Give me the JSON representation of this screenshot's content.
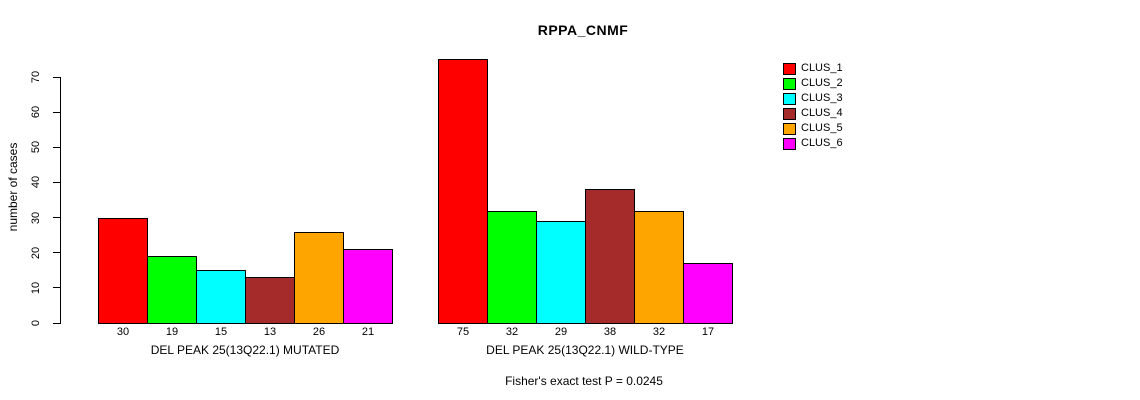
{
  "title": "RPPA_CNMF",
  "chart_data": {
    "type": "bar",
    "title": "RPPA_CNMF",
    "ylabel": "number of cases",
    "xlabel": "",
    "ylim": [
      0,
      70
    ],
    "yticks": [
      0,
      10,
      20,
      30,
      40,
      50,
      60,
      70
    ],
    "grid": false,
    "legend_position": "right",
    "legend": [
      {
        "label": "CLUS_1",
        "color": "#FF0000"
      },
      {
        "label": "CLUS_2",
        "color": "#00FF00"
      },
      {
        "label": "CLUS_3",
        "color": "#00FFFF"
      },
      {
        "label": "CLUS_4",
        "color": "#A52A2A"
      },
      {
        "label": "CLUS_5",
        "color": "#FFA500"
      },
      {
        "label": "CLUS_6",
        "color": "#FF00FF"
      }
    ],
    "groups": [
      {
        "label": "DEL PEAK 25(13Q22.1) MUTATED",
        "values": [
          30,
          19,
          15,
          13,
          26,
          21
        ]
      },
      {
        "label": "DEL PEAK 25(13Q22.1) WILD-TYPE",
        "values": [
          75,
          32,
          29,
          38,
          32,
          17
        ]
      }
    ],
    "annotation": "Fisher's exact test P = 0.0245"
  }
}
